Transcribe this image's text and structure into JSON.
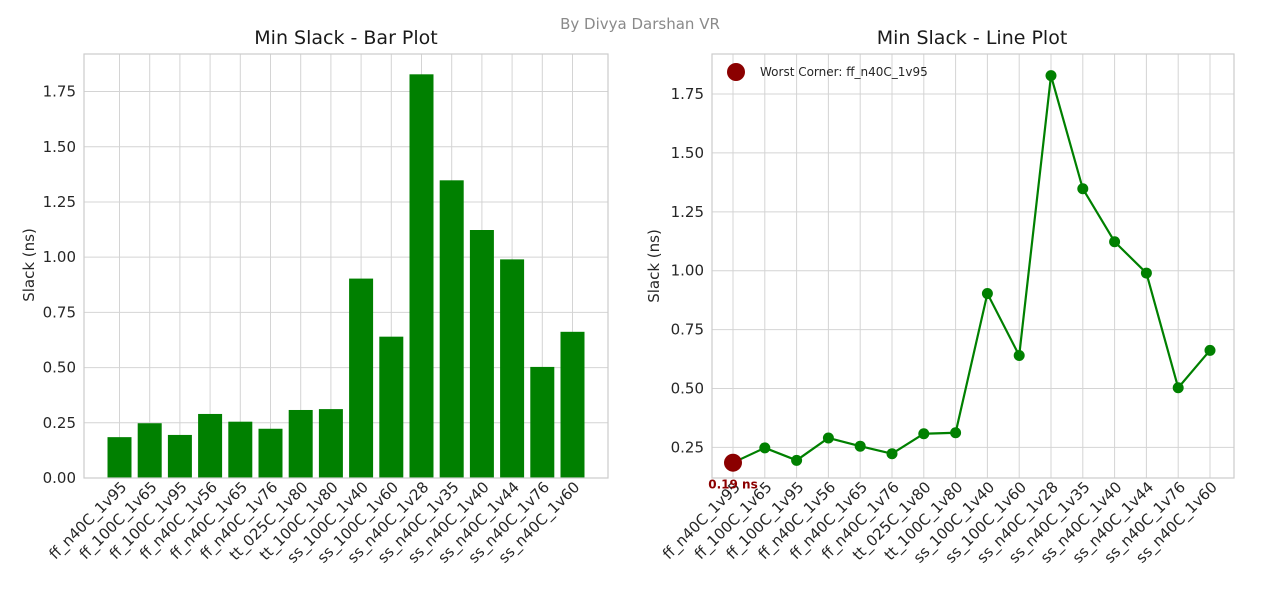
{
  "credit": "By Divya Darshan VR",
  "chart_data": [
    {
      "type": "bar",
      "title": "Min Slack - Bar Plot",
      "xlabel": "",
      "ylabel": "Slack (ns)",
      "ylim": [
        0,
        1.92
      ],
      "yticks": [
        "0.00",
        "0.25",
        "0.50",
        "0.75",
        "1.00",
        "1.25",
        "1.50",
        "1.75"
      ],
      "grid": true,
      "bar_color": "#008000",
      "categories": [
        "ff_n40C_1v95",
        "ff_100C_1v65",
        "ff_100C_1v95",
        "ff_n40C_1v56",
        "ff_n40C_1v65",
        "ff_n40C_1v76",
        "tt_025C_1v80",
        "tt_100C_1v80",
        "ss_100C_1v40",
        "ss_100C_1v60",
        "ss_n40C_1v28",
        "ss_n40C_1v35",
        "ss_n40C_1v40",
        "ss_n40C_1v44",
        "ss_n40C_1v76",
        "ss_n40C_1v60"
      ],
      "values": [
        0.185,
        0.248,
        0.195,
        0.29,
        0.255,
        0.223,
        0.308,
        0.312,
        0.903,
        0.64,
        1.828,
        1.348,
        1.123,
        0.99,
        0.503,
        0.662
      ]
    },
    {
      "type": "line",
      "title": "Min Slack - Line Plot",
      "xlabel": "",
      "ylabel": "Slack (ns)",
      "ylim": [
        0.12,
        1.92
      ],
      "yticks": [
        "0.25",
        "0.50",
        "0.75",
        "1.00",
        "1.25",
        "1.50",
        "1.75"
      ],
      "grid": true,
      "line_color": "#008000",
      "highlight_color": "#8b0000",
      "legend": {
        "entry": "Worst Corner: ff_n40C_1v95",
        "placement": "top-left"
      },
      "annotation": {
        "text": "0.19 ns",
        "index": 0
      },
      "categories": [
        "ff_n40C_1v95",
        "ff_100C_1v65",
        "ff_100C_1v95",
        "ff_n40C_1v56",
        "ff_n40C_1v65",
        "ff_n40C_1v76",
        "tt_025C_1v80",
        "tt_100C_1v80",
        "ss_100C_1v40",
        "ss_100C_1v60",
        "ss_n40C_1v28",
        "ss_n40C_1v35",
        "ss_n40C_1v40",
        "ss_n40C_1v44",
        "ss_n40C_1v76",
        "ss_n40C_1v60"
      ],
      "values": [
        0.185,
        0.248,
        0.195,
        0.29,
        0.255,
        0.223,
        0.308,
        0.312,
        0.903,
        0.64,
        1.828,
        1.348,
        1.123,
        0.99,
        0.503,
        0.662
      ]
    }
  ]
}
